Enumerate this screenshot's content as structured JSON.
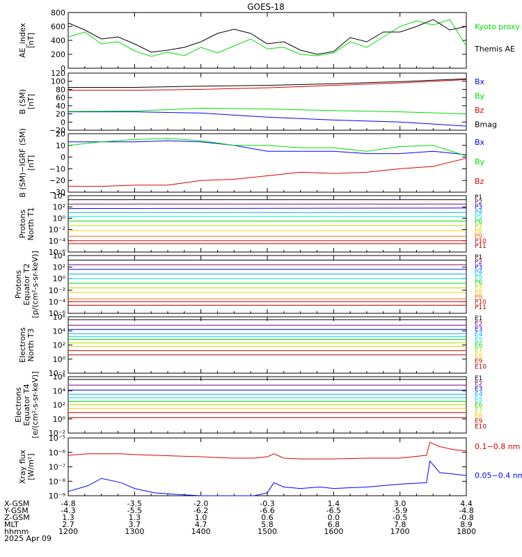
{
  "title": "GOES-18",
  "footer": {
    "row_labels": [
      "X-GSM",
      "Y-GSM",
      "Z-GSM",
      "MLT",
      "hhmm",
      "2025 Apr 09"
    ],
    "columns": [
      {
        "x": "-4.8",
        "y": "-4.3",
        "z": "1.3",
        "mlt": "2.7",
        "hhmm": "1200"
      },
      {
        "x": "-3.5",
        "y": "-5.5",
        "z": "1.3",
        "mlt": "3.7",
        "hhmm": "1300"
      },
      {
        "x": "-2.0",
        "y": "-6.2",
        "z": "1.0",
        "mlt": "4.7",
        "hhmm": "1400"
      },
      {
        "x": "-0.3",
        "y": "-6.6",
        "z": "0.6",
        "mlt": "5.8",
        "hhmm": "1500"
      },
      {
        "x": "1.4",
        "y": "-6.5",
        "z": "0.0",
        "mlt": "6.8",
        "hhmm": "1600"
      },
      {
        "x": "3.0",
        "y": "-5.9",
        "z": "-0.5",
        "mlt": "7.8",
        "hhmm": "1700"
      },
      {
        "x": "4.4",
        "y": "-4.8",
        "z": "-0.8",
        "mlt": "8.9",
        "hhmm": "1800"
      }
    ]
  },
  "chart_data": [
    {
      "type": "line",
      "ylabel": [
        "AE_index",
        "[nT]"
      ],
      "ylim": [
        0,
        800
      ],
      "yticks": [
        "0",
        "200",
        "400",
        "600",
        "800"
      ],
      "yscale": "linear",
      "x": [
        0,
        0.25,
        0.5,
        0.75,
        1,
        1.25,
        1.5,
        1.75,
        2,
        2.25,
        2.5,
        2.75,
        3,
        3.25,
        3.5,
        3.75,
        4,
        4.25,
        4.5,
        4.75,
        5,
        5.25,
        5.5,
        5.75,
        6
      ],
      "series": [
        {
          "name": "Kyoto proxy AE",
          "color": "#00dd00",
          "values": [
            450,
            520,
            350,
            380,
            250,
            170,
            230,
            180,
            300,
            220,
            320,
            420,
            280,
            300,
            200,
            180,
            220,
            380,
            300,
            450,
            600,
            680,
            620,
            700,
            320
          ]
        },
        {
          "name": "Themis AE",
          "color": "#000000",
          "values": [
            650,
            550,
            420,
            450,
            350,
            230,
            260,
            300,
            380,
            500,
            560,
            500,
            350,
            380,
            260,
            200,
            240,
            440,
            380,
            520,
            520,
            600,
            700,
            550,
            600
          ]
        }
      ]
    },
    {
      "type": "line",
      "ylabel": [
        "B (SM)",
        "[nT]"
      ],
      "ylim": [
        -20,
        120
      ],
      "yticks": [
        "−20",
        "0",
        "20",
        "40",
        "60",
        "80",
        "100",
        "120"
      ],
      "yscale": "linear",
      "x": [
        0,
        1,
        2,
        3,
        4,
        5,
        6
      ],
      "series": [
        {
          "name": "Bx",
          "color": "#0000ff",
          "values": [
            25,
            25,
            22,
            12,
            5,
            0,
            -10
          ]
        },
        {
          "name": "By",
          "color": "#00dd00",
          "values": [
            26,
            27,
            34,
            32,
            28,
            25,
            20
          ]
        },
        {
          "name": "Bz",
          "color": "#dd0000",
          "values": [
            78,
            78,
            80,
            84,
            90,
            96,
            104
          ]
        },
        {
          "name": "Bmag",
          "color": "#000000",
          "values": [
            85,
            85,
            88,
            90,
            94,
            99,
            106
          ]
        }
      ]
    },
    {
      "type": "line",
      "ylabel": [
        "B (SM)−IGRF (SM)",
        "[nT]"
      ],
      "ylim": [
        -30,
        20
      ],
      "yticks": [
        "−30",
        "−20",
        "−10",
        "0",
        "10",
        "20"
      ],
      "yscale": "linear",
      "x": [
        0,
        0.5,
        1,
        1.5,
        2,
        2.5,
        3,
        3.5,
        4,
        4.5,
        5,
        5.5,
        6
      ],
      "series": [
        {
          "name": "Bx",
          "color": "#0000ff",
          "values": [
            13,
            13,
            13,
            14,
            13,
            10,
            5,
            5,
            5,
            3,
            3,
            5,
            2
          ]
        },
        {
          "name": "By",
          "color": "#00dd00",
          "values": [
            10,
            13,
            15,
            16,
            14,
            10,
            10,
            8,
            8,
            5,
            9,
            10,
            1
          ]
        },
        {
          "name": "Bz",
          "color": "#dd0000",
          "values": [
            -25,
            -25,
            -24,
            -24,
            -20,
            -19,
            -16,
            -13,
            -14,
            -13,
            -10,
            -8,
            -1
          ]
        }
      ]
    },
    {
      "type": "line",
      "ylabel": [
        "Protons",
        "North T1"
      ],
      "ylim": [
        -6,
        4
      ],
      "yscale": "log",
      "yticks": [
        "10⁻⁶",
        "10⁻⁴",
        "10⁻²",
        "10⁰",
        "10²",
        "10⁴"
      ],
      "x": [
        0,
        6
      ],
      "series": [
        {
          "name": "P1",
          "color": "#000000",
          "values": [
            3.3,
            3.3
          ]
        },
        {
          "name": "P2",
          "color": "#770077",
          "values": [
            2.5,
            2.5
          ]
        },
        {
          "name": "P3",
          "color": "#0000ff",
          "values": [
            1.7,
            1.8
          ]
        },
        {
          "name": "P4",
          "color": "#00aaff",
          "values": [
            1.0,
            1.0
          ]
        },
        {
          "name": "P5",
          "color": "#00dddd",
          "values": [
            0.3,
            0.3
          ]
        },
        {
          "name": "P6",
          "color": "#00dd00",
          "values": [
            -0.5,
            -0.5
          ]
        },
        {
          "name": "P7",
          "color": "#aadd00",
          "values": [
            -1.3,
            -1.3
          ]
        },
        {
          "name": "P8",
          "color": "#ffcc00",
          "values": [
            -2.2,
            -2.2
          ]
        },
        {
          "name": "P9",
          "color": "#ff6600",
          "values": [
            -3.2,
            -3.2
          ]
        },
        {
          "name": "P10",
          "color": "#dd0000",
          "values": [
            -4.0,
            -4.0
          ]
        },
        {
          "name": "P11",
          "color": "#aa0000",
          "values": [
            -4.5,
            -4.5
          ]
        }
      ]
    },
    {
      "type": "line",
      "ylabel": [
        "Protons",
        "Equator T2",
        "[p/(cm²-s-sr-keV)]"
      ],
      "ylim": [
        -6,
        4
      ],
      "yscale": "log",
      "yticks": [
        "10⁻⁶",
        "10⁻⁴",
        "10⁻²",
        "10⁰",
        "10²",
        "10⁴"
      ],
      "x": [
        0,
        6
      ],
      "series": [
        {
          "name": "P1",
          "color": "#000000",
          "values": [
            3.2,
            3.2
          ]
        },
        {
          "name": "P2",
          "color": "#770077",
          "values": [
            2.4,
            2.4
          ]
        },
        {
          "name": "P3",
          "color": "#0000ff",
          "values": [
            1.6,
            1.6
          ]
        },
        {
          "name": "P4",
          "color": "#00aaff",
          "values": [
            0.8,
            0.8
          ]
        },
        {
          "name": "P5",
          "color": "#00dddd",
          "values": [
            0.0,
            0.0
          ]
        },
        {
          "name": "P6",
          "color": "#00dd00",
          "values": [
            -0.8,
            -0.8
          ]
        },
        {
          "name": "P7",
          "color": "#aadd00",
          "values": [
            -1.6,
            -1.6
          ]
        },
        {
          "name": "P8",
          "color": "#ffcc00",
          "values": [
            -2.4,
            -2.4
          ]
        },
        {
          "name": "P9",
          "color": "#ff6600",
          "values": [
            -3.5,
            -3.5
          ]
        },
        {
          "name": "P10",
          "color": "#dd0000",
          "values": [
            -4.0,
            -4.0
          ]
        },
        {
          "name": "P11",
          "color": "#aa0000",
          "values": [
            -4.6,
            -4.6
          ]
        }
      ]
    },
    {
      "type": "line",
      "ylabel": [
        "Electrons",
        "North T3"
      ],
      "ylim": [
        -2,
        6
      ],
      "yscale": "log",
      "yticks": [
        "10⁻²",
        "10⁰",
        "10²",
        "10⁴",
        "10⁶"
      ],
      "x": [
        0,
        6
      ],
      "series": [
        {
          "name": "E1",
          "color": "#000000",
          "values": [
            5.6,
            5.6
          ]
        },
        {
          "name": "E2",
          "color": "#770077",
          "values": [
            4.8,
            4.8
          ]
        },
        {
          "name": "E3",
          "color": "#0000ff",
          "values": [
            4.2,
            4.2
          ]
        },
        {
          "name": "E4",
          "color": "#00aaff",
          "values": [
            3.6,
            3.6
          ]
        },
        {
          "name": "E5",
          "color": "#00dddd",
          "values": [
            3.2,
            3.2
          ]
        },
        {
          "name": "E6",
          "color": "#00dd00",
          "values": [
            2.8,
            2.8
          ]
        },
        {
          "name": "E7",
          "color": "#aadd00",
          "values": [
            2.3,
            2.3
          ]
        },
        {
          "name": "E8",
          "color": "#ffcc00",
          "values": [
            1.8,
            1.8
          ]
        },
        {
          "name": "E9",
          "color": "#dd0000",
          "values": [
            1.2,
            1.2
          ]
        },
        {
          "name": "E10",
          "color": "#aa0000",
          "values": [
            0.6,
            0.6
          ]
        }
      ]
    },
    {
      "type": "line",
      "ylabel": [
        "Electrons",
        "Equator T4",
        "[e/(cm²-s-sr-keV)]"
      ],
      "ylim": [
        -2,
        6
      ],
      "yscale": "log",
      "yticks": [
        "10⁻²",
        "10⁰",
        "10²",
        "10⁴",
        "10⁶"
      ],
      "x": [
        0,
        6
      ],
      "series": [
        {
          "name": "E1",
          "color": "#000000",
          "values": [
            5.6,
            5.6
          ]
        },
        {
          "name": "E2",
          "color": "#770077",
          "values": [
            4.8,
            4.8
          ]
        },
        {
          "name": "E3",
          "color": "#0000ff",
          "values": [
            4.1,
            4.1
          ]
        },
        {
          "name": "E4",
          "color": "#00aaff",
          "values": [
            3.5,
            3.5
          ]
        },
        {
          "name": "E5",
          "color": "#00dddd",
          "values": [
            3.0,
            3.0
          ]
        },
        {
          "name": "E6",
          "color": "#00dd00",
          "values": [
            2.5,
            2.5
          ]
        },
        {
          "name": "E7",
          "color": "#aadd00",
          "values": [
            2.0,
            2.0
          ]
        },
        {
          "name": "E8",
          "color": "#ffcc00",
          "values": [
            1.5,
            1.5
          ]
        },
        {
          "name": "E9",
          "color": "#dd0000",
          "values": [
            0.9,
            0.9
          ]
        },
        {
          "name": "E10",
          "color": "#aa0000",
          "values": [
            0.2,
            0.2
          ]
        }
      ]
    },
    {
      "type": "line",
      "ylabel": [
        "Xray flux",
        "[W/m²]"
      ],
      "ylim": [
        -9,
        -5
      ],
      "yscale": "log",
      "yticks": [
        "10⁻⁹",
        "10⁻⁸",
        "10⁻⁷",
        "10⁻⁶",
        "10⁻⁵"
      ],
      "x": [
        0,
        0.3,
        0.5,
        0.8,
        1.0,
        1.3,
        1.6,
        2.0,
        2.2,
        2.5,
        2.8,
        3.0,
        3.1,
        3.25,
        3.5,
        3.8,
        4.0,
        4.5,
        5.0,
        5.4,
        5.45,
        5.6,
        5.8,
        6.0
      ],
      "series": [
        {
          "name": "0.1−0.8 nm",
          "color": "#dd0000",
          "values": [
            -6.2,
            -6.1,
            -6.1,
            -6.1,
            -6.15,
            -6.2,
            -6.25,
            -6.3,
            -6.35,
            -6.4,
            -6.4,
            -6.3,
            -6.1,
            -6.4,
            -6.45,
            -6.45,
            -6.45,
            -6.4,
            -6.4,
            -6.2,
            -5.3,
            -5.6,
            -5.8,
            -5.9
          ]
        },
        {
          "name": "0.05−0.4 nm",
          "color": "#0000ff",
          "values": [
            -8.7,
            -8.3,
            -7.8,
            -8.1,
            -8.5,
            -8.8,
            -8.9,
            -9.0,
            -9.0,
            -9.0,
            -9.0,
            -8.8,
            -8.1,
            -8.4,
            -8.5,
            -8.4,
            -8.5,
            -8.4,
            -8.2,
            -8.1,
            -6.6,
            -7.4,
            -7.5,
            -7.6
          ]
        }
      ]
    }
  ]
}
